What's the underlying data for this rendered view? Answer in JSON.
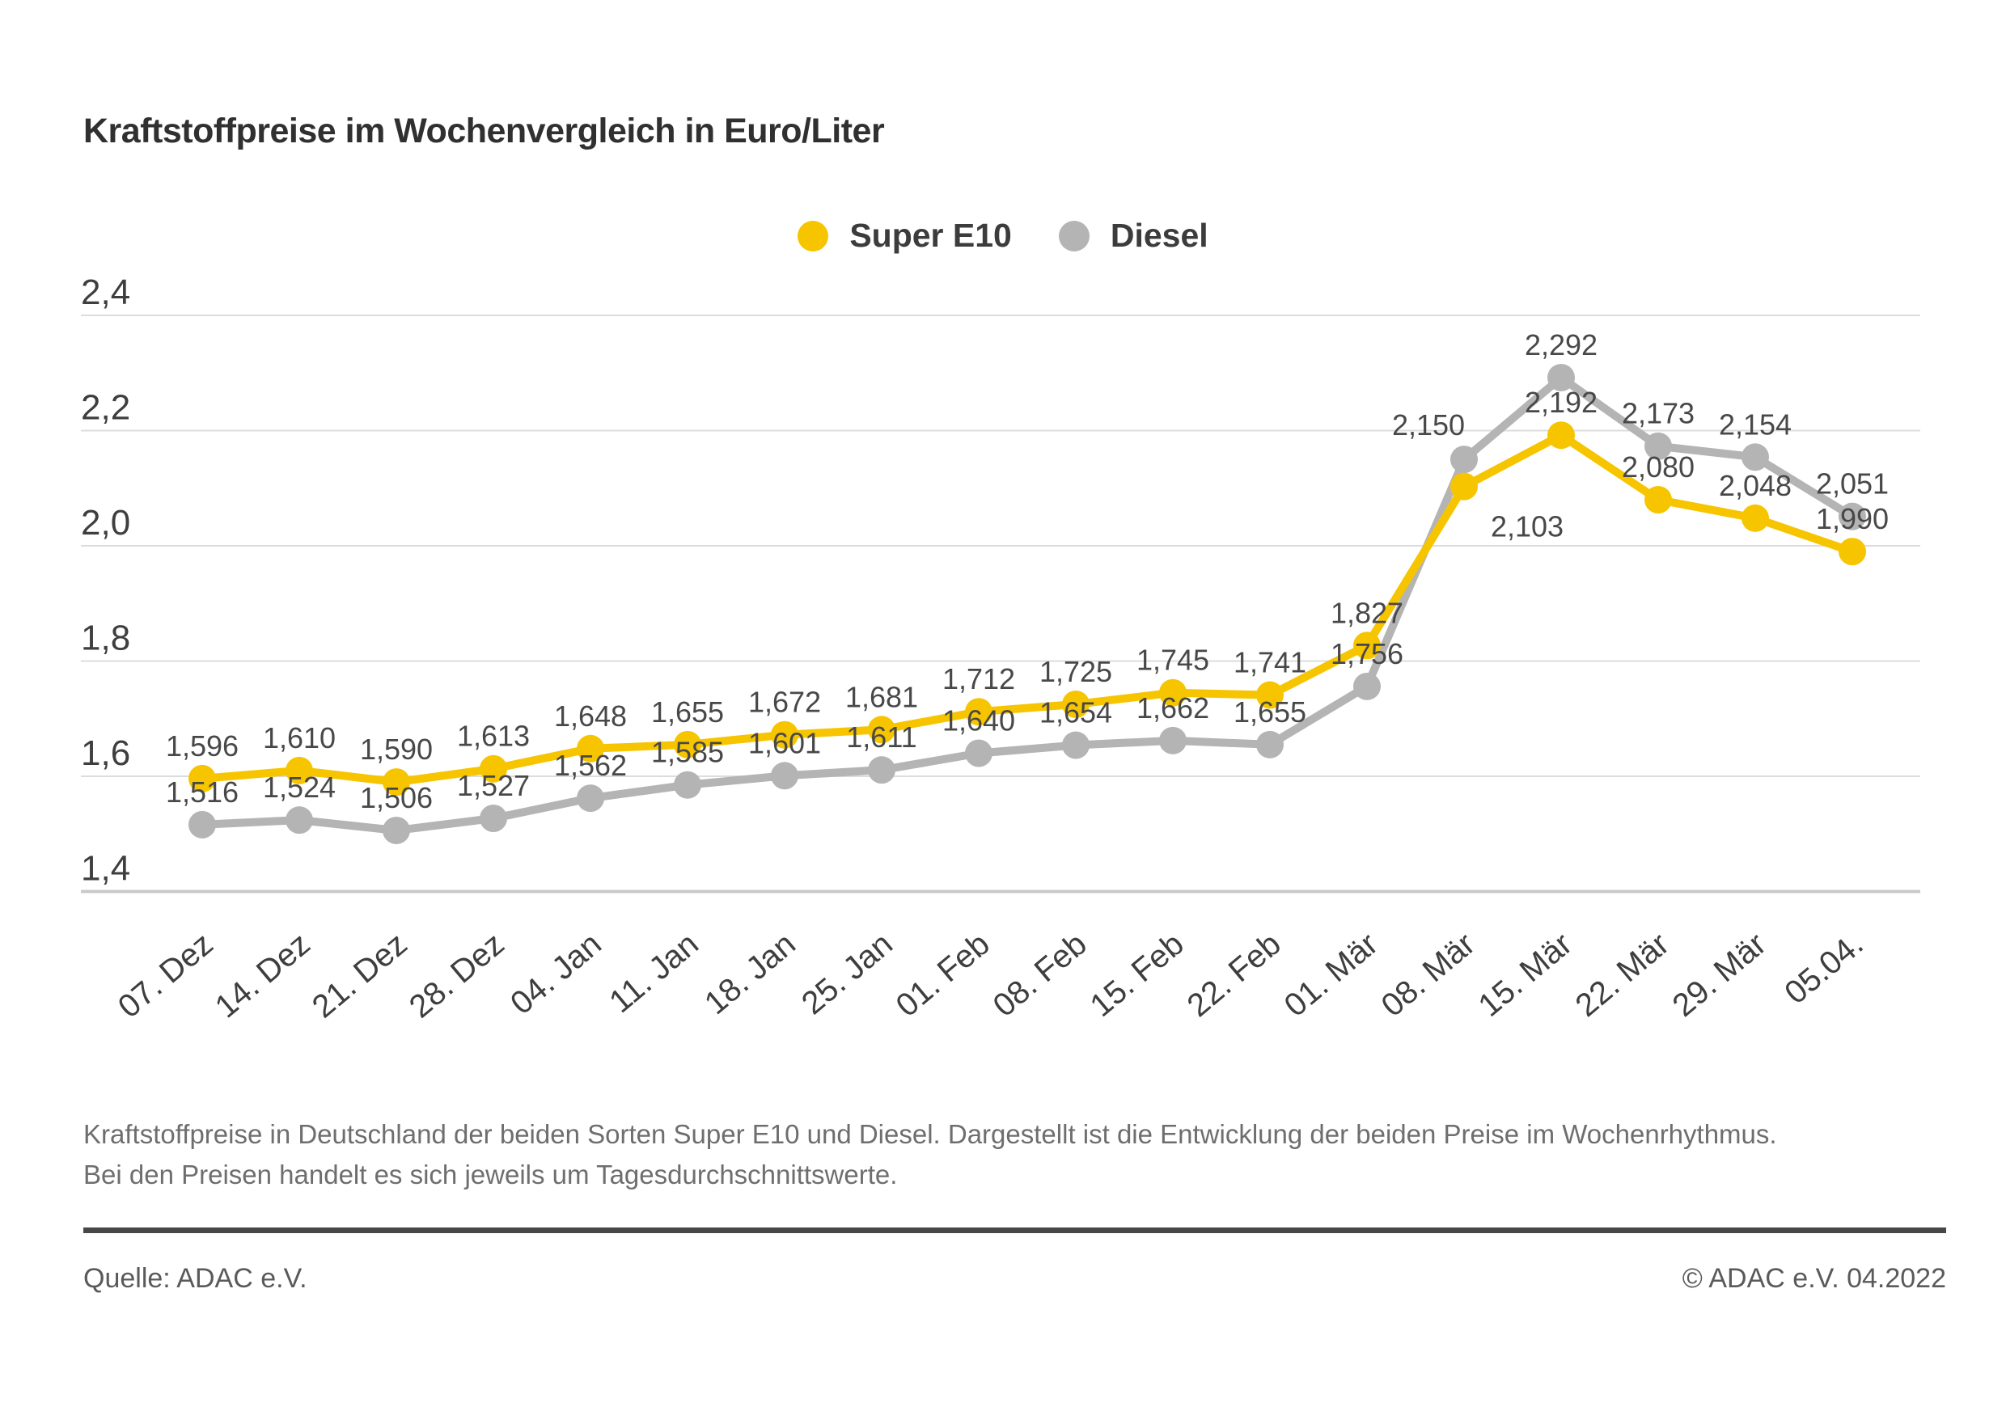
{
  "page": {
    "title": "Kraftstoffpreise im Wochenvergleich in Euro/Liter",
    "description": "Kraftstoffpreise in Deutschland der beiden Sorten Super E10 und Diesel. Dargestellt ist die Entwicklung der beiden Preise im Wochenrhythmus. Bei den Preisen handelt es sich jeweils um Tagesdurchschnittswerte.",
    "source": "Quelle: ADAC e.V.",
    "copyright": "© ADAC e.V. 04.2022"
  },
  "legend": [
    {
      "label": "Super E10",
      "color": "#f6c500"
    },
    {
      "label": "Diesel",
      "color": "#b4b4b4"
    }
  ],
  "chart_data": {
    "type": "line",
    "title": "Kraftstoffpreise im Wochenvergleich in Euro/Liter",
    "categories": [
      "07. Dez",
      "14. Dez",
      "21. Dez",
      "28. Dez",
      "04. Jan",
      "11. Jan",
      "18. Jan",
      "25. Jan",
      "01. Feb",
      "08. Feb",
      "15. Feb",
      "22. Feb",
      "01. Mär",
      "08. Mär",
      "15. Mär",
      "22. Mär",
      "29. Mär",
      "05.04."
    ],
    "series": [
      {
        "name": "Super E10",
        "color": "#f6c500",
        "values": [
          1.596,
          1.61,
          1.59,
          1.613,
          1.648,
          1.655,
          1.672,
          1.681,
          1.712,
          1.725,
          1.745,
          1.741,
          1.827,
          2.103,
          2.192,
          2.08,
          2.048,
          1.99
        ],
        "labels": [
          "1,596",
          "1,610",
          "1,590",
          "1,613",
          "1,648",
          "1,655",
          "1,672",
          "1,681",
          "1,712",
          "1,725",
          "1,745",
          "1,741",
          "1,827",
          "2,103",
          "2,192",
          "2,080",
          "2,048",
          "1,990"
        ]
      },
      {
        "name": "Diesel",
        "color": "#b4b4b4",
        "values": [
          1.516,
          1.524,
          1.506,
          1.527,
          1.562,
          1.585,
          1.601,
          1.611,
          1.64,
          1.654,
          1.662,
          1.655,
          1.756,
          2.15,
          2.292,
          2.173,
          2.154,
          2.051
        ],
        "labels": [
          "1,516",
          "1,524",
          "1,506",
          "1,527",
          "1,562",
          "1,585",
          "1,601",
          "1,611",
          "1,640",
          "1,654",
          "1,662",
          "1,655",
          "1,756",
          "2,150",
          "2,292",
          "2,173",
          "2,154",
          "2,051"
        ]
      }
    ],
    "ylim": [
      1.4,
      2.4
    ],
    "yticks": [
      2.4,
      2.2,
      2.0,
      1.8,
      1.6,
      1.4
    ],
    "ytick_labels": [
      "2,4",
      "2,2",
      "2,0",
      "1,8",
      "1,6",
      "1,4"
    ],
    "xlabel": "",
    "ylabel": "Euro/Liter",
    "grid": true,
    "legend_position": "top-center",
    "label_overrides": {
      "Super E10": {
        "13": {
          "dx": 78,
          "dy": 62
        }
      },
      "Diesel": {
        "13": {
          "dx": -44,
          "dy": -30
        }
      }
    },
    "colors": {
      "grid": "#dcdcdc",
      "axis": "#c9c9c9",
      "tick_text": "#3e3e3e",
      "data_label_text": "#484848"
    }
  }
}
